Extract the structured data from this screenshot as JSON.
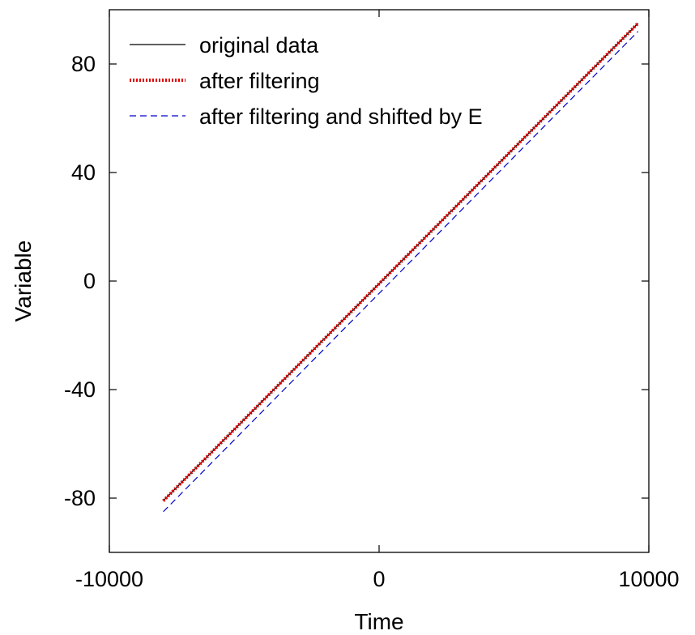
{
  "chart_data": {
    "type": "line",
    "xlabel": "Time",
    "ylabel": "Variable",
    "xlim": [
      -10000,
      10000
    ],
    "ylim": [
      -100,
      100
    ],
    "x_ticks": [
      -10000,
      0,
      10000
    ],
    "y_ticks": [
      -80,
      -40,
      0,
      40,
      80
    ],
    "x_tick_labels": [
      "-10000",
      "0",
      "10000"
    ],
    "y_tick_labels": [
      "-80",
      "-40",
      "0",
      "40",
      "80"
    ],
    "grid": false,
    "legend_position": "top-left",
    "series": [
      {
        "name": "original data",
        "style": "solid",
        "color": "#000000",
        "x": [
          -8000,
          9600
        ],
        "y": [
          -81,
          95
        ]
      },
      {
        "name": "after filtering",
        "style": "dotted",
        "color": "#e00000",
        "x": [
          -8000,
          9600
        ],
        "y": [
          -81,
          95
        ]
      },
      {
        "name": "after filtering and shifted by E",
        "style": "dashed",
        "color": "#0000cc",
        "x": [
          -8000,
          9600
        ],
        "y": [
          -85,
          92
        ]
      }
    ]
  }
}
